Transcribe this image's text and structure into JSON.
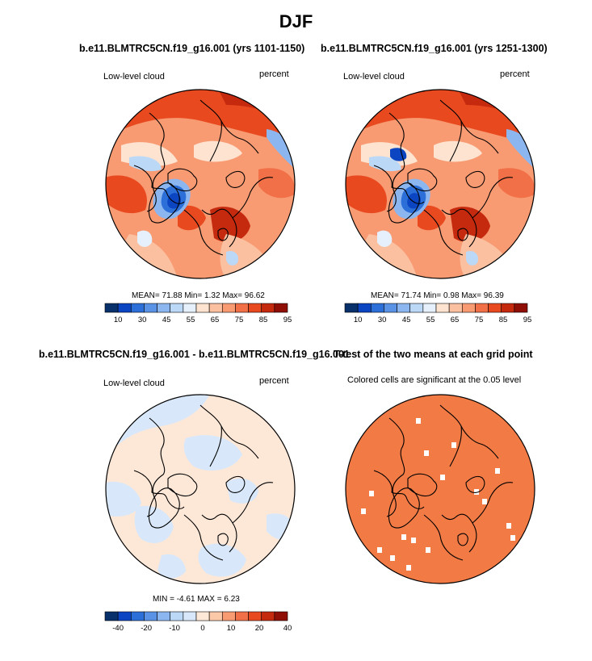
{
  "figure": {
    "title": "DJF"
  },
  "colors": {
    "abs_scale": [
      "#08306b",
      "#0b45c2",
      "#2c6fd8",
      "#5a93e6",
      "#8cb6f0",
      "#bcd8f7",
      "#e5f0fc",
      "#fde3d0",
      "#fbc0a0",
      "#f89a72",
      "#f27048",
      "#e8491f",
      "#c52a0f",
      "#8f0f06"
    ],
    "diff_scale": [
      "#08306b",
      "#0b45c2",
      "#2c6fd8",
      "#5a93e6",
      "#8cb6f0",
      "#bcd8f7",
      "#d8e8fa",
      "#fde8d8",
      "#fbc9a8",
      "#f89a72",
      "#f27048",
      "#e8491f",
      "#c52a0f",
      "#8f0f06"
    ],
    "significant": "#f27a45"
  },
  "chart_data": [
    {
      "type": "heatmap",
      "projection": "north-polar-stereographic",
      "title": "b.e11.BLMTRC5CN.f19_g16.001 (yrs 1101-1150)",
      "left_label": "Low-level cloud",
      "right_label": "percent",
      "stats_text": "MEAN=  71.88  Min=   1.32  Max=  96.62",
      "stats": {
        "mean": 71.88,
        "min": 1.32,
        "max": 96.62
      },
      "colorbar_ticks": [
        "10",
        "30",
        "45",
        "55",
        "65",
        "75",
        "85",
        "95"
      ],
      "colorbar_levels": [
        10,
        20,
        30,
        40,
        45,
        50,
        55,
        60,
        65,
        70,
        75,
        80,
        85,
        90,
        95
      ]
    },
    {
      "type": "heatmap",
      "projection": "north-polar-stereographic",
      "title": "b.e11.BLMTRC5CN.f19_g16.001 (yrs 1251-1300)",
      "left_label": "Low-level cloud",
      "right_label": "percent",
      "stats_text": "MEAN=  71.74  Min=   0.98  Max=  96.39",
      "stats": {
        "mean": 71.74,
        "min": 0.98,
        "max": 96.39
      },
      "colorbar_ticks": [
        "10",
        "30",
        "45",
        "55",
        "65",
        "75",
        "85",
        "95"
      ],
      "colorbar_levels": [
        10,
        20,
        30,
        40,
        45,
        50,
        55,
        60,
        65,
        70,
        75,
        80,
        85,
        90,
        95
      ]
    },
    {
      "type": "heatmap",
      "projection": "north-polar-stereographic",
      "title": "b.e11.BLMTRC5CN.f19_g16.001 - b.e11.BLMTRC5CN.f19_g16.001",
      "left_label": "Low-level cloud",
      "right_label": "percent",
      "stats_text": "MIN =  -4.61  MAX =   6.23",
      "stats": {
        "min": -4.61,
        "max": 6.23
      },
      "colorbar_ticks": [
        "-40",
        "-20",
        "-10",
        "0",
        "10",
        "20",
        "40"
      ],
      "colorbar_levels": [
        -50,
        -40,
        -30,
        -20,
        -15,
        -10,
        -5,
        0,
        5,
        10,
        15,
        20,
        30,
        40,
        50
      ]
    },
    {
      "type": "heatmap",
      "projection": "north-polar-stereographic",
      "title": "T-test of the two means at each grid point",
      "subtitle": "Colored cells are significant at the 0.05 level",
      "significance_level": 0.05
    }
  ]
}
